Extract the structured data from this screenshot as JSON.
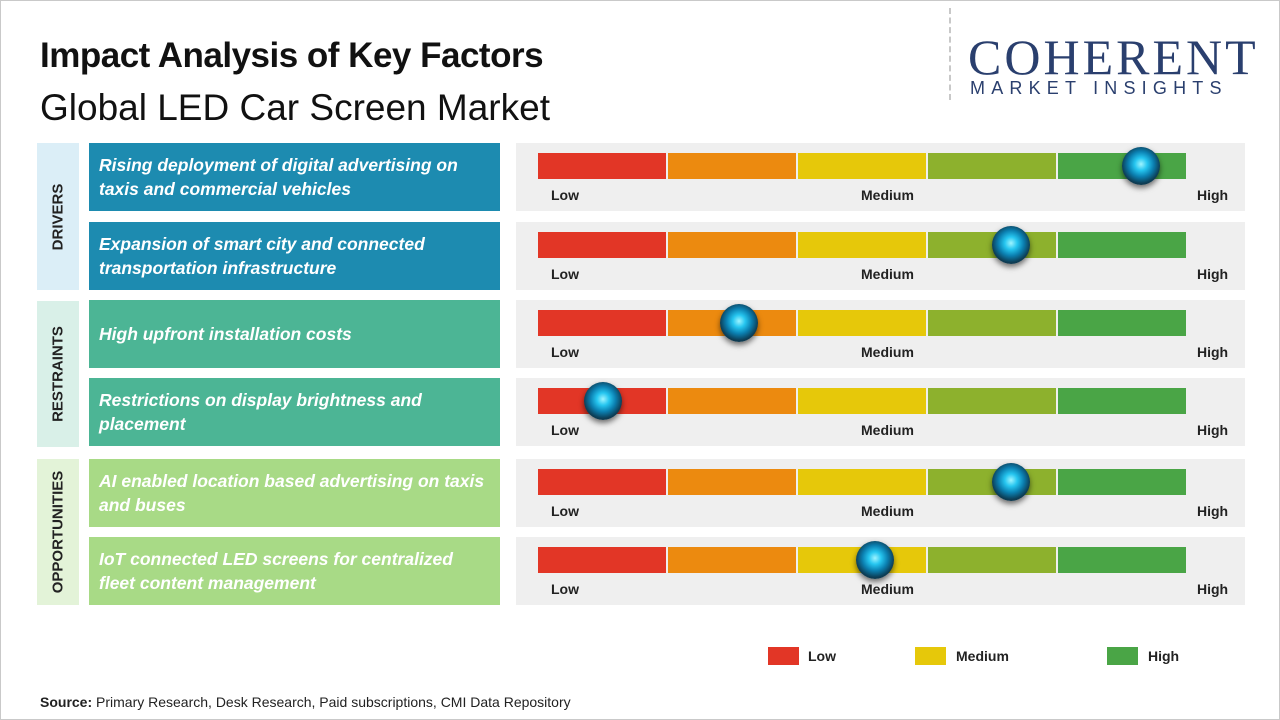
{
  "header": {
    "title": "Impact Analysis of Key Factors",
    "subtitle": "Global LED Car Screen Market"
  },
  "logo": {
    "word": "COHERENT",
    "sub": "MARKET INSIGHTS"
  },
  "colors": {
    "drivers_tab": "#dbeef7",
    "drivers_box": "#1d8bb0",
    "restraints_tab": "#d9f0e8",
    "restraints_box": "#4cb595",
    "opportunities_tab": "#e3f3d8",
    "opportunities_box": "#a8da86",
    "scale_low": "#e23626",
    "scale_low_mid": "#ec8a0f",
    "scale_medium": "#e6c80a",
    "scale_mid_high": "#8db12d",
    "scale_high": "#4aa546"
  },
  "scale_labels": {
    "low": "Low",
    "medium": "Medium",
    "high": "High"
  },
  "groups": [
    {
      "label": "DRIVERS"
    },
    {
      "label": "RESTRAINTS"
    },
    {
      "label": "OPPORTUNITIES"
    }
  ],
  "chart_data": {
    "type": "table",
    "scale": [
      "Low",
      "Medium",
      "High"
    ],
    "value_range": [
      0,
      1
    ],
    "rows": [
      {
        "group": "DRIVERS",
        "factor": "Rising deployment of digital advertising on taxis and commercial vehicles",
        "impact": 0.93
      },
      {
        "group": "DRIVERS",
        "factor": "Expansion of smart city and connected transportation infrastructure",
        "impact": 0.73
      },
      {
        "group": "RESTRAINTS",
        "factor": "High upfront installation costs",
        "impact": 0.31
      },
      {
        "group": "RESTRAINTS",
        "factor": "Restrictions on display brightness and placement",
        "impact": 0.1
      },
      {
        "group": "OPPORTUNITIES",
        "factor": "AI enabled location based advertising on taxis and buses",
        "impact": 0.73
      },
      {
        "group": "OPPORTUNITIES",
        "factor": "IoT connected LED screens for centralized fleet content management",
        "impact": 0.52
      }
    ]
  },
  "legend": [
    {
      "label": "Low",
      "color": "#e23626"
    },
    {
      "label": "Medium",
      "color": "#e6c80a"
    },
    {
      "label": "High",
      "color": "#4aa546"
    }
  ],
  "source": {
    "label": "Source:",
    "text": " Primary Research, Desk Research, Paid subscriptions, CMI Data Repository"
  }
}
